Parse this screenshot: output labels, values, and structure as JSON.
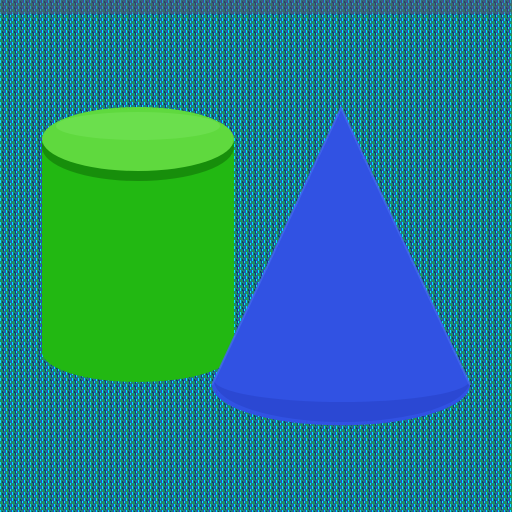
{
  "scene": {
    "background": {
      "base_color": "#1f7f7a",
      "noise_colors": [
        "#00e5ff",
        "#1a2f8f",
        "#22a43a",
        "#2a3fd0",
        "#0a4a48"
      ],
      "top_band_color": "#5a4a70"
    },
    "objects": [
      {
        "shape": "cylinder",
        "colors": {
          "body": "#22b812",
          "top": "#5fd93e",
          "top_highlight": "#74e35a",
          "rim_shadow": "#178e0b"
        }
      },
      {
        "shape": "cone",
        "colors": {
          "body": "#3152e3",
          "edge": "#4466f0",
          "base_shadow": "#2842c8"
        }
      }
    ]
  }
}
